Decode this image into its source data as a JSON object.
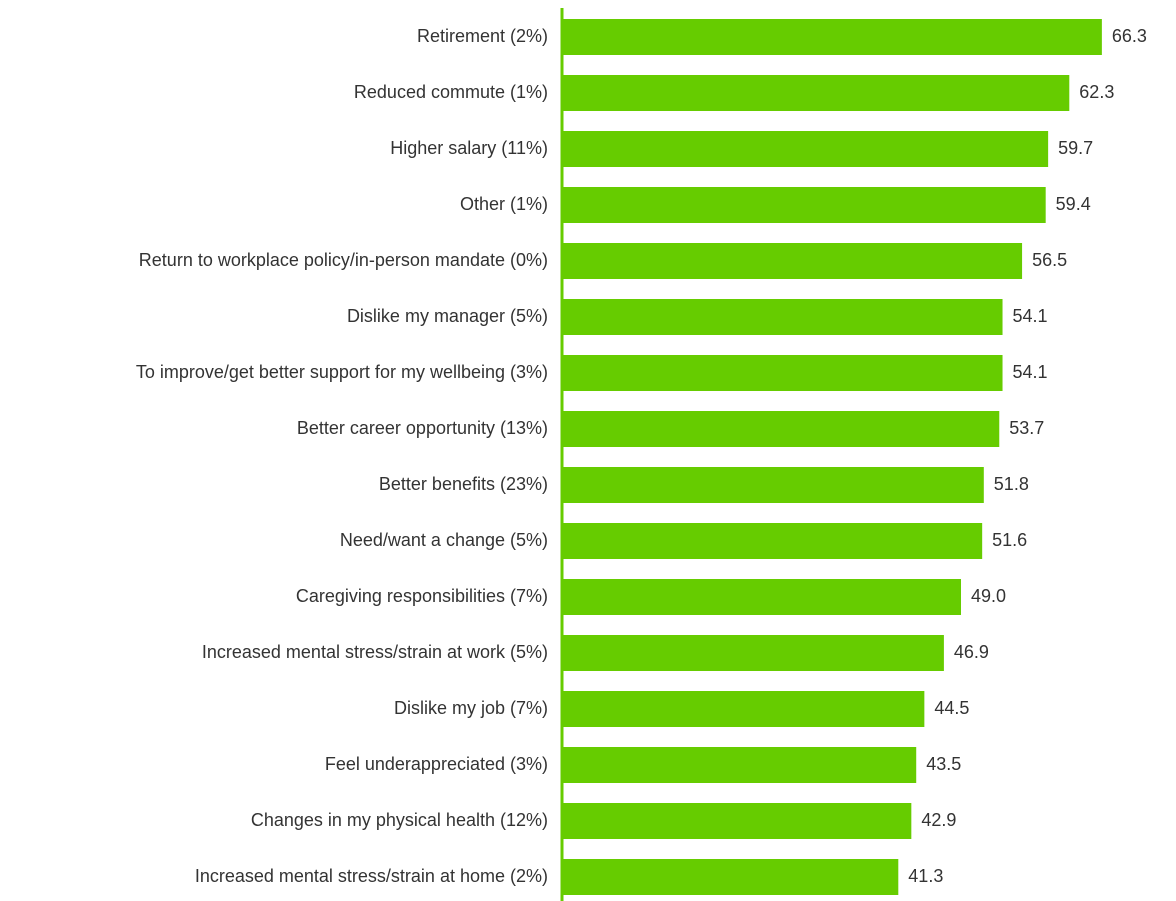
{
  "chart_data": {
    "type": "barh",
    "categories": [
      "Retirement (2%)",
      "Reduced commute (1%)",
      "Higher salary (11%)",
      "Other (1%)",
      "Return to workplace policy/in-person mandate  (0%)",
      "Dislike my manager (5%)",
      "To improve/get better support for my wellbeing (3%)",
      "Better career opportunity (13%)",
      "Better benefits (23%)",
      "Need/want a change (5%)",
      "Caregiving responsibilities (7%)",
      "Increased mental stress/strain at work (5%)",
      "Dislike my job (7%)",
      "Feel underappreciated (3%)",
      "Changes in my physical health (12%)",
      "Increased mental stress/strain at home (2%)"
    ],
    "values": [
      66.3,
      62.3,
      59.7,
      59.4,
      56.5,
      54.1,
      54.1,
      53.7,
      51.8,
      51.6,
      49.0,
      46.9,
      44.5,
      43.5,
      42.9,
      41.3
    ],
    "value_labels": [
      "66.3",
      "62.3",
      "59.7",
      "59.4",
      "56.5",
      "54.1",
      "54.1",
      "53.7",
      "51.8",
      "51.6",
      "49.0",
      "46.9",
      "44.5",
      "43.5",
      "42.9",
      "41.3"
    ],
    "color": "#66cc00",
    "xlim": [
      0,
      70
    ]
  }
}
